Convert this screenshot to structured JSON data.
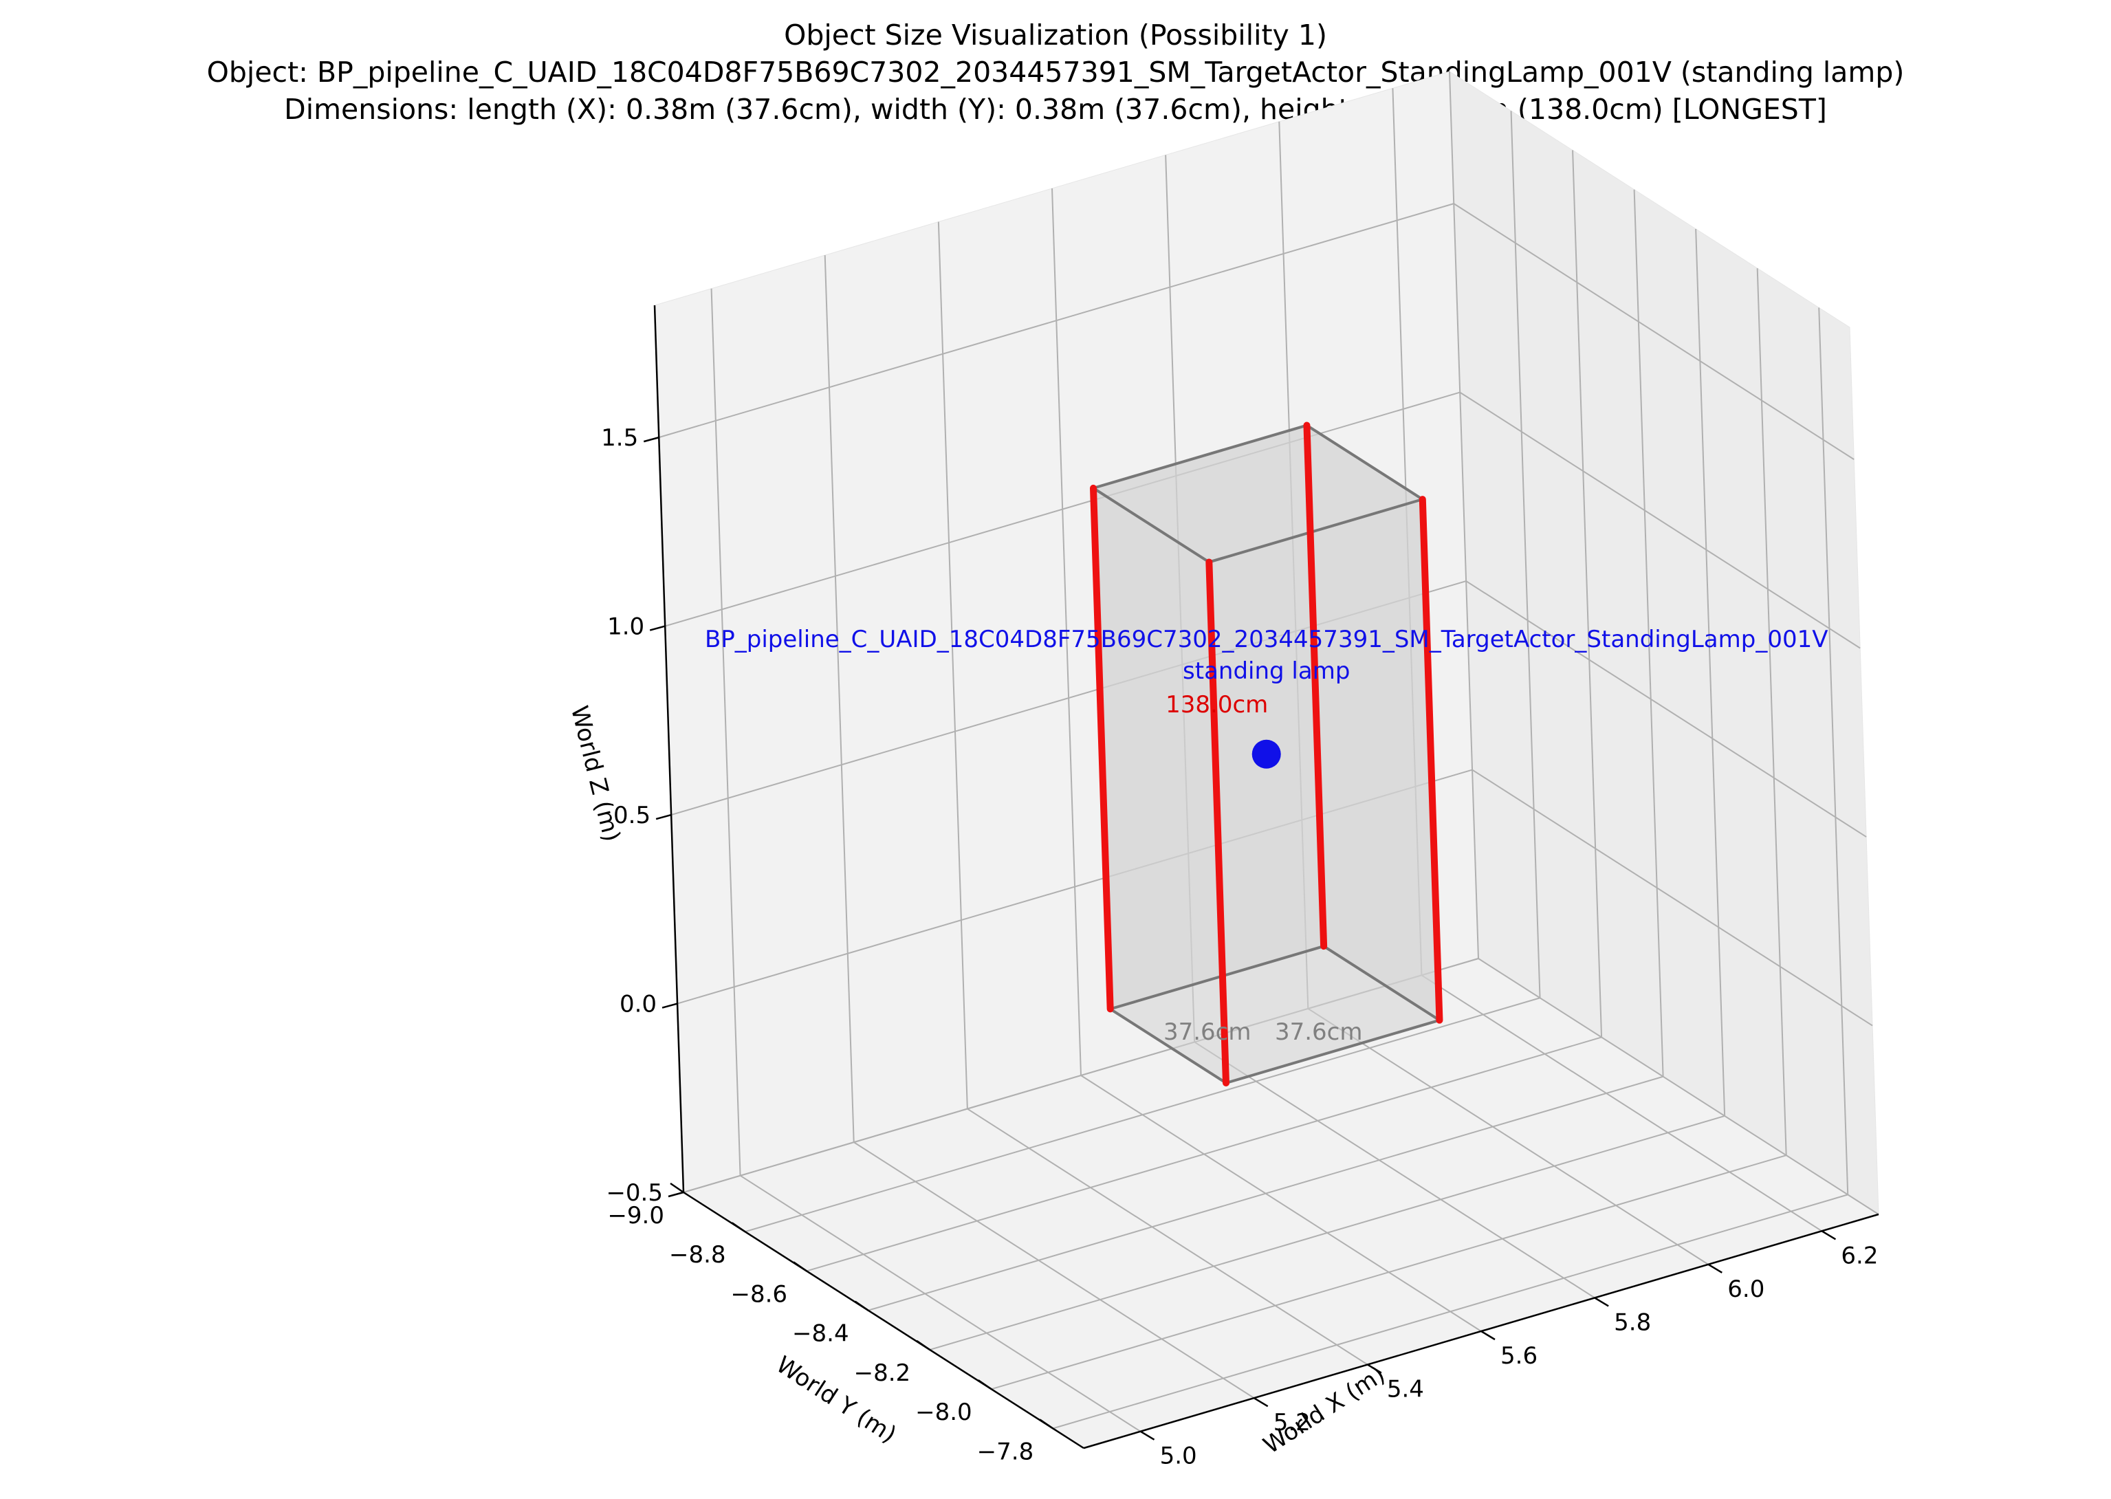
{
  "chart_data": {
    "type": "3d-box",
    "title": "Object Size Visualization (Possibility 1)",
    "subtitle_object": "Object: BP_pipeline_C_UAID_18C04D8F75B69C7302_2034457391_SM_TargetActor_StandingLamp_001V (standing lamp)",
    "subtitle_dimensions": "Dimensions: length (X): 0.38m (37.6cm), width (Y): 0.38m (37.6cm), height (Z): 1.38m (138.0cm) [LONGEST]",
    "xlabel": "World X (m)",
    "ylabel": "World Y (m)",
    "zlabel": "World Z (m)",
    "xlim": [
      4.9,
      6.3
    ],
    "ylim": [
      -9.0,
      -7.7
    ],
    "zlim": [
      -0.5,
      1.85
    ],
    "x_ticks": [
      5.0,
      5.2,
      5.4,
      5.6,
      5.8,
      6.0,
      6.2
    ],
    "x_tick_labels": [
      "5.0",
      "5.2",
      "5.4",
      "5.6",
      "5.8",
      "6.0",
      "6.2"
    ],
    "y_ticks": [
      -9.0,
      -8.8,
      -8.6,
      -8.4,
      -8.2,
      -8.0,
      -7.8
    ],
    "y_tick_labels": [
      "−9.0",
      "−8.8",
      "−8.6",
      "−8.4",
      "−8.2",
      "−8.0",
      "−7.8"
    ],
    "z_ticks": [
      -0.5,
      0.0,
      0.5,
      1.0,
      1.5
    ],
    "z_tick_labels": [
      "−0.5",
      "0.0",
      "0.5",
      "1.0",
      "1.5"
    ],
    "box": {
      "x_range": [
        5.412,
        5.788
      ],
      "y_range": [
        -8.538,
        -8.162
      ],
      "z_range": [
        0.0,
        1.38
      ]
    },
    "center_point": {
      "x": 5.6,
      "y": -8.35,
      "z": 0.69
    },
    "annotations": {
      "object_name": "BP_pipeline_C_UAID_18C04D8F75B69C7302_2034457391_SM_TargetActor_StandingLamp_001V",
      "object_label": "standing lamp",
      "height_label": "138.0cm",
      "length_label": "37.6cm",
      "width_label": "37.6cm"
    },
    "colors": {
      "height_edges": "#ee1111",
      "box_edges": "#777777",
      "box_fill": "#d3d3d3",
      "center_point": "#1010e8",
      "name_text": "#1010e8",
      "height_text": "#dd0000",
      "dim_text": "#808080"
    },
    "grid": true
  }
}
